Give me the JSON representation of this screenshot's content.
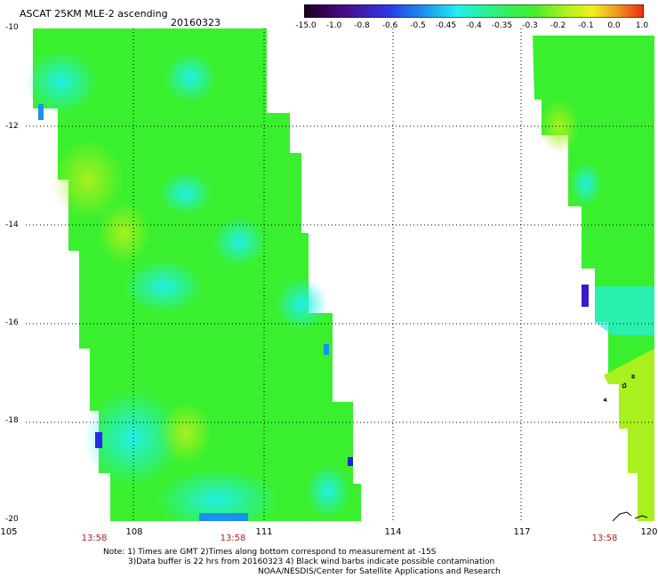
{
  "header": {
    "title": "ASCAT 25KM MLE-2 ascending",
    "date": "20160323"
  },
  "colorbar": {
    "labels": [
      "-15.0",
      "-1.0",
      "-0.8",
      "-0.6",
      "-0.5",
      "-0.45",
      "-0.4",
      "-0.35",
      "-0.3",
      "-0.2",
      "-0.1",
      "0.0",
      "1.0"
    ],
    "colors": [
      "#1a001a",
      "#3c0a5a",
      "#5a1fb4",
      "#2f3fe6",
      "#1a7cf0",
      "#20c8f0",
      "#22f0e6",
      "#30f080",
      "#40f032",
      "#9ef01e",
      "#f0f020",
      "#f0a020",
      "#f03c14"
    ]
  },
  "map": {
    "lat_range": [
      -20,
      -10
    ],
    "lon_range": [
      105,
      120
    ],
    "y_ticks": [
      "-10",
      "-12",
      "-14",
      "-16",
      "-18",
      "-20"
    ],
    "x_ticks": [
      "105",
      "108",
      "111",
      "114",
      "117",
      "120"
    ],
    "swath_times": [
      "13:58",
      "13:58",
      "13:58"
    ]
  },
  "notes": [
    "Note: 1) Times are GMT 2)Times along bottom correspond to measurement at -15S",
    "3)Data buffer is 22 hrs from 20160323 4) Black wind barbs indicate possible contamination",
    "NOAA/NESDIS/Center for Satellite Applications and Research"
  ]
}
